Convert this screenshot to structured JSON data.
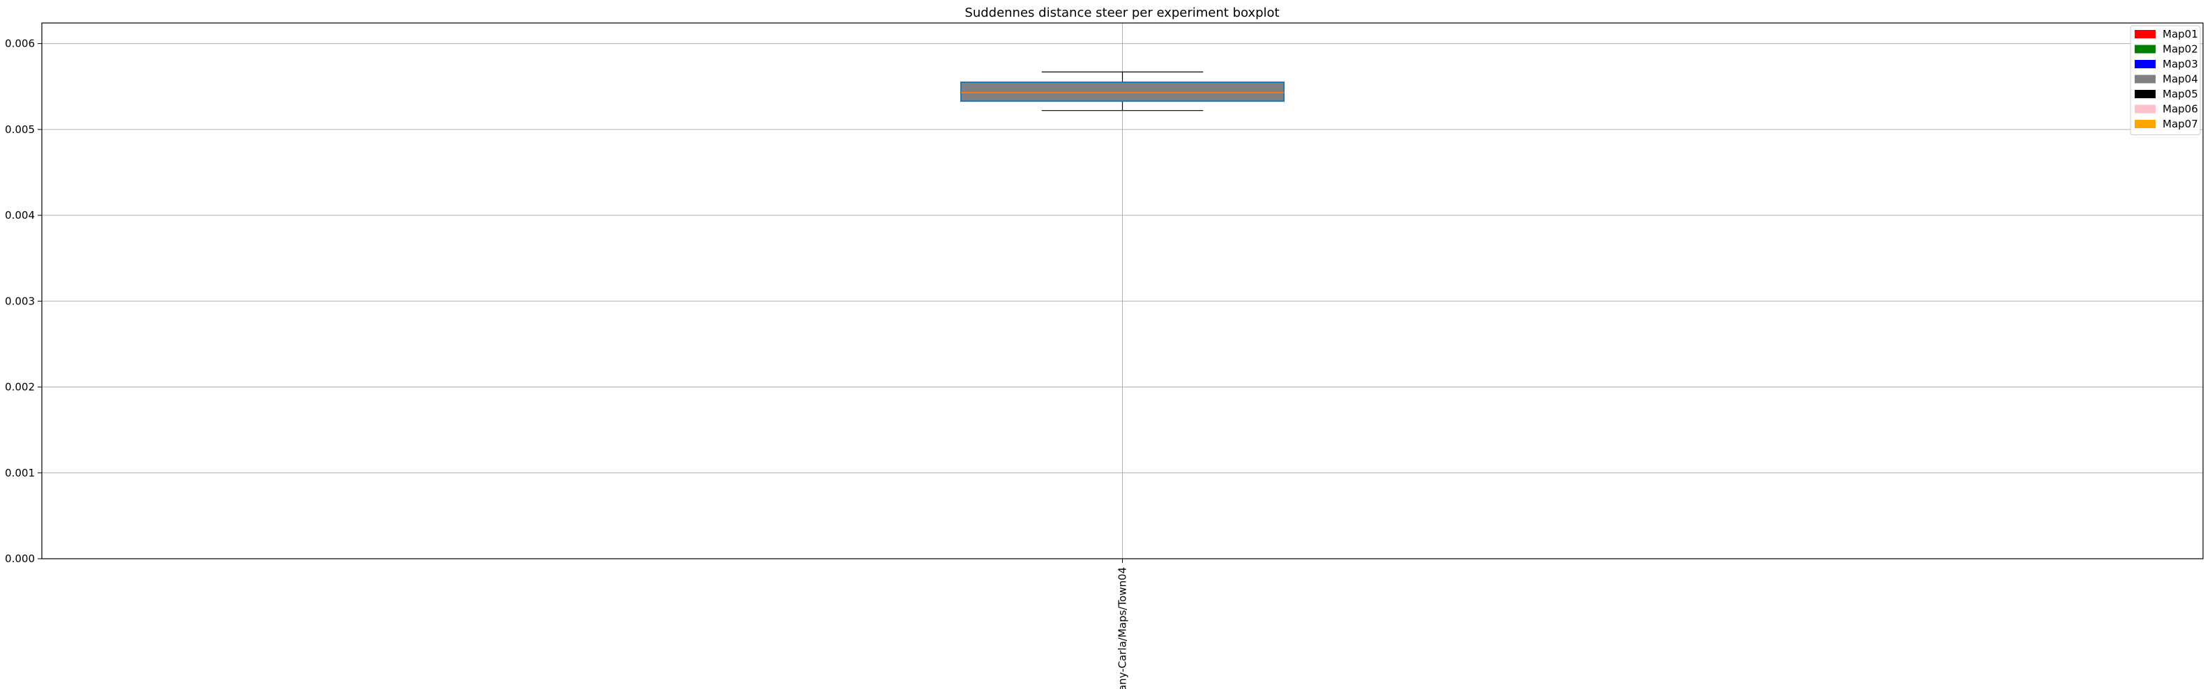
{
  "chart_data": {
    "type": "boxplot",
    "title": "Suddennes distance steer per experiment boxplot",
    "xlabel": "",
    "ylabel": "",
    "categories": [
      "any-Carla/Maps/Town04"
    ],
    "boxes": [
      {
        "category": "any-Carla/Maps/Town04",
        "whisker_low": 0.00522,
        "q1": 0.00533,
        "median": 0.00543,
        "q3": 0.00555,
        "whisker_high": 0.00567
      }
    ],
    "ylim": [
      0.0,
      0.00624
    ],
    "yticks": [
      0.0,
      0.001,
      0.002,
      0.003,
      0.004,
      0.005,
      0.006
    ],
    "ytick_labels": [
      "0.000",
      "0.001",
      "0.002",
      "0.003",
      "0.004",
      "0.005",
      "0.006"
    ],
    "grid": true,
    "legend_position": "top-right",
    "legend": [
      {
        "label": "Map01",
        "color": "#ff0000"
      },
      {
        "label": "Map02",
        "color": "#008000"
      },
      {
        "label": "Map03",
        "color": "#0000ff"
      },
      {
        "label": "Map04",
        "color": "#808080"
      },
      {
        "label": "Map05",
        "color": "#000000"
      },
      {
        "label": "Map06",
        "color": "#ffc0cb"
      },
      {
        "label": "Map07",
        "color": "#ffa500"
      }
    ],
    "colors": {
      "box_edge": "#1f77b4",
      "box_fill": "#808080",
      "median": "#ff7f0e",
      "whisker": "#000000",
      "grid": "#b0b0b0"
    }
  }
}
